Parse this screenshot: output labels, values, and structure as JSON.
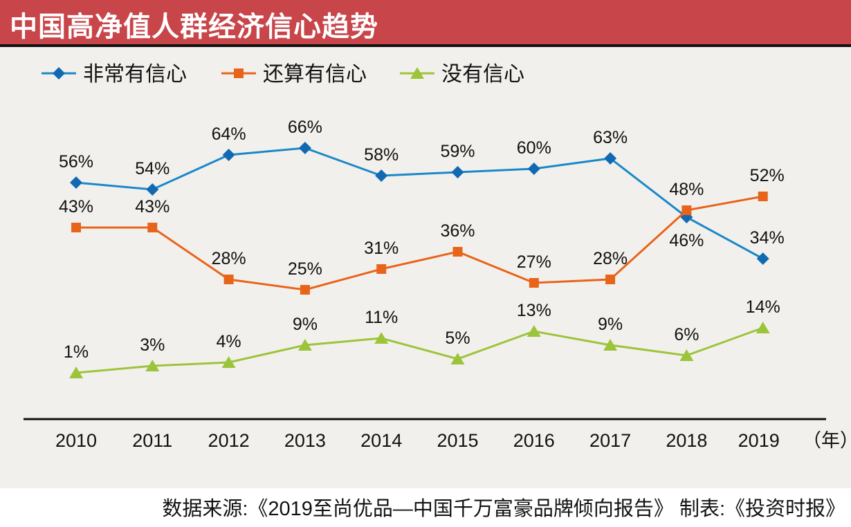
{
  "chart_data": {
    "type": "line",
    "title": "中国高净值人群经济信心趋势",
    "categories": [
      "2010",
      "2011",
      "2012",
      "2013",
      "2014",
      "2015",
      "2016",
      "2017",
      "2018",
      "2019"
    ],
    "x_unit": "（年）",
    "series": [
      {
        "name": "非常有信心",
        "color": "#1a88c9",
        "marker": "diamond",
        "values": [
          56,
          54,
          64,
          66,
          58,
          59,
          60,
          63,
          46,
          34
        ]
      },
      {
        "name": "还算有信心",
        "color": "#e8641b",
        "marker": "square",
        "values": [
          43,
          43,
          28,
          25,
          31,
          36,
          27,
          28,
          48,
          52
        ]
      },
      {
        "name": "没有信心",
        "color": "#9cc43a",
        "marker": "triangle",
        "values": [
          1,
          3,
          4,
          9,
          11,
          5,
          13,
          9,
          6,
          14
        ]
      }
    ],
    "value_suffix": "%",
    "legend_position": "top-left",
    "grid": false
  },
  "header": {
    "title": "中国高净值人群经济信心趋势",
    "color": "#c8454a"
  },
  "footer": {
    "source": "数据来源:《2019至尚优品—中国千万富豪品牌倾向报告》 制表:《投资时报》"
  }
}
